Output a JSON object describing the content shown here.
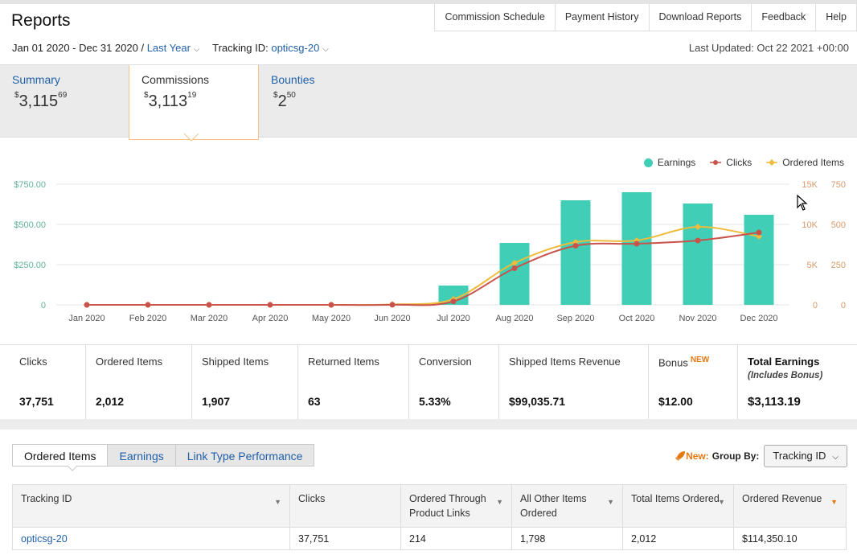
{
  "header": {
    "title": "Reports"
  },
  "topnav": [
    "Commission Schedule",
    "Payment History",
    "Download Reports",
    "Feedback",
    "Help"
  ],
  "filters": {
    "date_range": "Jan 01 2020 - Dec 31 2020 /",
    "period_link": "Last Year",
    "tracking_label": "Tracking ID:",
    "tracking_value": "opticsg-20",
    "last_updated": "Last Updated: Oct 22 2021 +00:00"
  },
  "summary_tabs": [
    {
      "label": "Summary",
      "dollar": "$",
      "whole": "3,115",
      "cents": "69"
    },
    {
      "label": "Commissions",
      "dollar": "$",
      "whole": "3,113",
      "cents": "19"
    },
    {
      "label": "Bounties",
      "dollar": "$",
      "whole": "2",
      "cents": "50"
    }
  ],
  "legend": {
    "earnings": "Earnings",
    "clicks": "Clicks",
    "ordered": "Ordered Items"
  },
  "colors": {
    "earnings": "#40cfb6",
    "clicks": "#c9524a",
    "ordered": "#eebb3a",
    "link": "#1f5fa8",
    "accent": "#e47911"
  },
  "chart_data": {
    "type": "bar",
    "categories": [
      "Jan 2020",
      "Feb 2020",
      "Mar 2020",
      "Apr 2020",
      "May 2020",
      "Jun 2020",
      "Jul 2020",
      "Aug 2020",
      "Sep 2020",
      "Oct 2020",
      "Nov 2020",
      "Dec 2020"
    ],
    "series": [
      {
        "name": "Earnings",
        "type": "bar",
        "axis": "left",
        "values": [
          0,
          0,
          0,
          0,
          0,
          0,
          120,
          385,
          650,
          700,
          630,
          560
        ]
      },
      {
        "name": "Clicks",
        "type": "line",
        "axis": "right-outer",
        "values": [
          0,
          0,
          0,
          0,
          0,
          10,
          430,
          4550,
          7350,
          7600,
          8000,
          9000
        ]
      },
      {
        "name": "Ordered Items",
        "type": "line",
        "axis": "right-inner",
        "values": [
          0,
          0,
          0,
          0,
          0,
          3,
          35,
          260,
          390,
          400,
          485,
          425
        ]
      }
    ],
    "y_left": {
      "ticks": [
        "$750.00",
        "$500.00",
        "$250.00",
        "0"
      ],
      "range": [
        0,
        750
      ]
    },
    "y_right_outer": {
      "ticks": [
        "15K",
        "10K",
        "5K",
        "0"
      ],
      "range": [
        0,
        15000
      ]
    },
    "y_right_inner": {
      "ticks": [
        "750",
        "500",
        "250",
        "0"
      ],
      "range": [
        0,
        750
      ]
    },
    "grid": true,
    "legend_position": "top-right"
  },
  "stats": [
    {
      "label": "Clicks",
      "value": "37,751"
    },
    {
      "label": "Ordered Items",
      "value": "2,012"
    },
    {
      "label": "Shipped Items",
      "value": "1,907"
    },
    {
      "label": "Returned Items",
      "value": "63"
    },
    {
      "label": "Conversion",
      "value": "5.33%"
    },
    {
      "label": "Shipped Items Revenue",
      "value": "$99,035.71"
    },
    {
      "label": "Bonus",
      "badge": "NEW",
      "value": "$12.00"
    },
    {
      "label": "Total Earnings",
      "sublabel": "(Includes Bonus)",
      "value": "$3,113.19"
    }
  ],
  "report_tabs": [
    "Ordered Items",
    "Earnings",
    "Link Type Performance"
  ],
  "groupby": {
    "new": "New:",
    "label": "Group By:",
    "value": "Tracking ID"
  },
  "table": {
    "headers": [
      "Tracking ID",
      "Clicks",
      "Ordered Through Product Links",
      "All Other Items Ordered",
      "Total Items Ordered",
      "Ordered Revenue"
    ],
    "rows": [
      [
        "opticsg-20",
        "37,751",
        "214",
        "1,798",
        "2,012",
        "$114,350.10"
      ]
    ]
  }
}
